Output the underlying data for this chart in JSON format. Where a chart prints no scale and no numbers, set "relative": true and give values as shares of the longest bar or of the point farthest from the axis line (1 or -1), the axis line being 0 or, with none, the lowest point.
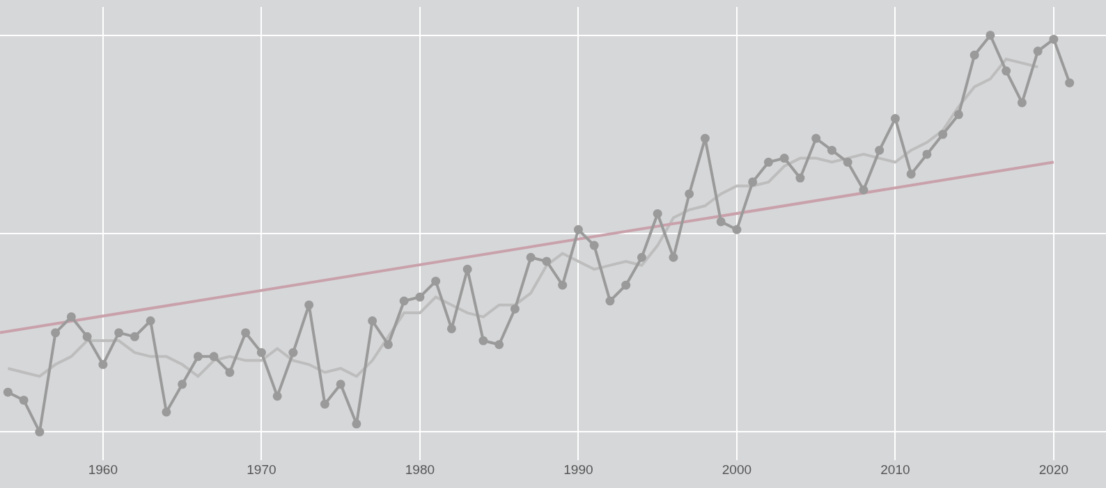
{
  "chart_data": {
    "type": "line",
    "relative": true,
    "xlim": [
      1953.5,
      2023.3
    ],
    "xticks": [
      1960,
      1970,
      1980,
      1990,
      2000,
      2010,
      2020
    ],
    "grid": true,
    "tick_labels": "x",
    "series": [
      {
        "color": "#bdbdbd",
        "marker": "none",
        "x": [
          1954,
          1955,
          1956,
          1957,
          1958,
          1959,
          1960,
          1961,
          1962,
          1963,
          1964,
          1965,
          1966,
          1967,
          1968,
          1969,
          1970,
          1971,
          1972,
          1973,
          1974,
          1975,
          1976,
          1977,
          1978,
          1979,
          1980,
          1981,
          1982,
          1983,
          1984,
          1985,
          1986,
          1987,
          1988,
          1989,
          1990,
          1991,
          1992,
          1993,
          1994,
          1995,
          1996,
          1997,
          1998,
          1999,
          2000,
          2001,
          2002,
          2003,
          2004,
          2005,
          2006,
          2007,
          2008,
          2009,
          2010,
          2011,
          2012,
          2013,
          2014,
          2015,
          2016,
          2017,
          2018,
          2019
        ],
        "values": [
          0.16,
          0.15,
          0.14,
          0.17,
          0.19,
          0.23,
          0.23,
          0.23,
          0.2,
          0.19,
          0.19,
          0.17,
          0.14,
          0.18,
          0.19,
          0.18,
          0.18,
          0.21,
          0.18,
          0.17,
          0.15,
          0.16,
          0.14,
          0.18,
          0.24,
          0.3,
          0.3,
          0.34,
          0.32,
          0.3,
          0.29,
          0.32,
          0.32,
          0.35,
          0.42,
          0.45,
          0.43,
          0.41,
          0.42,
          0.43,
          0.42,
          0.47,
          0.54,
          0.56,
          0.57,
          0.6,
          0.62,
          0.62,
          0.63,
          0.67,
          0.69,
          0.69,
          0.68,
          0.69,
          0.7,
          0.69,
          0.68,
          0.71,
          0.73,
          0.76,
          0.82,
          0.87,
          0.89,
          0.94,
          0.93,
          0.92
        ]
      },
      {
        "color": "#c9a1ab",
        "marker": "none",
        "x": [
          1953.5,
          2020
        ],
        "values": [
          0.25,
          0.68
        ]
      },
      {
        "color": "#9a9a9a",
        "marker": "circle",
        "x": [
          1954,
          1955,
          1956,
          1957,
          1958,
          1959,
          1960,
          1961,
          1962,
          1963,
          1964,
          1965,
          1966,
          1967,
          1968,
          1969,
          1970,
          1971,
          1972,
          1973,
          1974,
          1975,
          1976,
          1977,
          1978,
          1979,
          1980,
          1981,
          1982,
          1983,
          1984,
          1985,
          1986,
          1987,
          1988,
          1989,
          1990,
          1991,
          1992,
          1993,
          1994,
          1995,
          1996,
          1997,
          1998,
          1999,
          2000,
          2001,
          2002,
          2003,
          2004,
          2005,
          2006,
          2007,
          2008,
          2009,
          2010,
          2011,
          2012,
          2013,
          2014,
          2015,
          2016,
          2017,
          2018,
          2019,
          2020,
          2021
        ],
        "values": [
          0.1,
          0.08,
          0,
          0.25,
          0.29,
          0.24,
          0.17,
          0.25,
          0.24,
          0.28,
          0.05,
          0.12,
          0.19,
          0.19,
          0.15,
          0.25,
          0.2,
          0.09,
          0.2,
          0.32,
          0.07,
          0.12,
          0.02,
          0.28,
          0.22,
          0.33,
          0.34,
          0.38,
          0.26,
          0.41,
          0.23,
          0.22,
          0.31,
          0.44,
          0.43,
          0.37,
          0.51,
          0.47,
          0.33,
          0.37,
          0.44,
          0.55,
          0.44,
          0.6,
          0.74,
          0.53,
          0.51,
          0.63,
          0.68,
          0.69,
          0.64,
          0.74,
          0.71,
          0.68,
          0.61,
          0.71,
          0.79,
          0.65,
          0.7,
          0.75,
          0.8,
          0.95,
          1,
          0.91,
          0.83,
          0.96,
          0.99,
          0.88
        ]
      }
    ]
  }
}
